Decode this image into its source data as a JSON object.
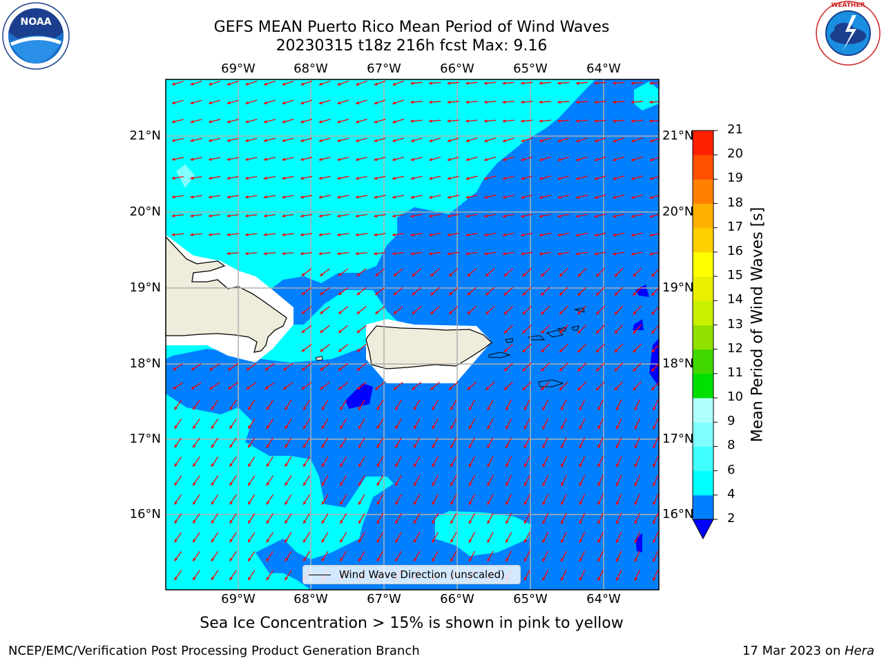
{
  "title_line1": "GEFS MEAN Puerto Rico Mean Period of Wind Waves",
  "title_line2": "20230315 t18z 216h fcst   Max: 9.16",
  "logos": {
    "left": "noaa-logo",
    "right": "nws-logo"
  },
  "map": {
    "lon_labels": [
      "69°W",
      "68°W",
      "67°W",
      "66°W",
      "65°W",
      "64°W"
    ],
    "lat_labels": [
      "21°N",
      "20°N",
      "19°N",
      "18°N",
      "17°N",
      "16°N"
    ],
    "lon_range": [
      -70.0,
      -63.25
    ],
    "lat_range": [
      15.0,
      21.75
    ],
    "colors": {
      "water_shallow_period": "#0080ff",
      "water_longer_period": "#00ffff",
      "land": "#efecdc",
      "masked": "#ffffff",
      "arrows": "#ff0000",
      "grid": "#b0b0b0"
    },
    "legend_label": "Wind Wave Direction (unscaled)"
  },
  "colorbar": {
    "title": "Mean Period of Wind Waves [s]",
    "ticks": [
      "2",
      "4",
      "6",
      "8",
      "9",
      "10",
      "11",
      "12",
      "13",
      "14",
      "15",
      "16",
      "17",
      "18",
      "19",
      "20",
      "21"
    ],
    "colors": [
      "#0080ff",
      "#00ffff",
      "#40ffff",
      "#80ffff",
      "#b0ffff",
      "#50ff80",
      "#00e000",
      "#40d800",
      "#90e000",
      "#c8f000",
      "#e8f000",
      "#ffff00",
      "#ffd000",
      "#ffb000",
      "#ff8000",
      "#ff5000",
      "#ff2000",
      "#ff0000"
    ],
    "under_color": "#0000ff"
  },
  "caption": "Sea Ice Concentration > 15% is shown in pink to yellow",
  "footer_left": "NCEP/EMC/Verification Post Processing Product Generation Branch",
  "footer_date": "17 Mar 2023 on ",
  "footer_machine": "Hera"
}
